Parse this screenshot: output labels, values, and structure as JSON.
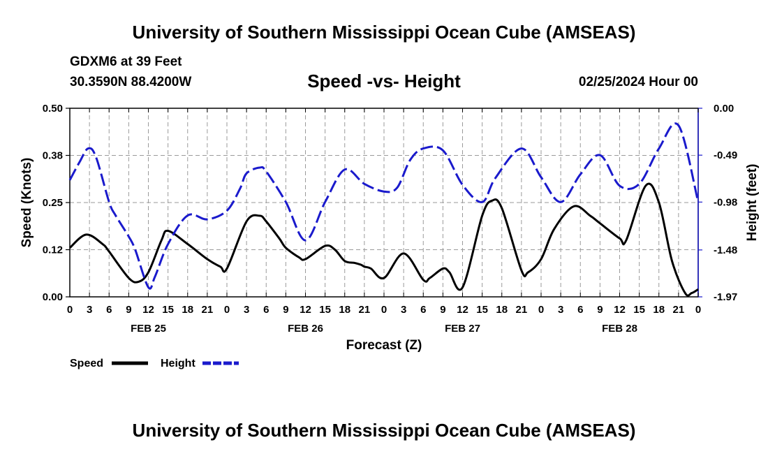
{
  "chart_data": {
    "type": "line",
    "title": "University of Southern Mississippi Ocean Cube (AMSEAS)",
    "footer_title": "University of Southern Mississippi Ocean Cube (AMSEAS)",
    "station": "GDXM6 at 39 Feet",
    "location": "30.3590N  88.4200W",
    "subtitle": "Speed -vs- Height",
    "datetime": "02/25/2024 Hour 00",
    "xlabel": "Forecast (Z)",
    "ylabel_left": "Speed (Knots)",
    "ylabel_right": "Height (feet)",
    "x_range": [
      0,
      96
    ],
    "ylim_left": [
      0,
      0.5
    ],
    "ylim_right": [
      -1.97,
      0.0
    ],
    "left_ticks": [
      "0.50",
      "0.38",
      "0.25",
      "0.12",
      "0.00"
    ],
    "left_tick_values": [
      0.5,
      0.375,
      0.25,
      0.125,
      0.0
    ],
    "right_ticks": [
      "0.00",
      "-0.49",
      "-0.98",
      "-1.48",
      "-1.97"
    ],
    "right_tick_values": [
      0.0,
      -0.49,
      -0.98,
      -1.48,
      -1.97
    ],
    "x_tick_values": [
      0,
      3,
      6,
      9,
      12,
      15,
      18,
      21,
      24,
      27,
      30,
      33,
      36,
      39,
      42,
      45,
      48,
      51,
      54,
      57,
      60,
      63,
      66,
      69,
      72,
      75,
      78,
      81,
      84,
      87,
      90,
      93,
      96
    ],
    "x_tick_labels": [
      "0",
      "3",
      "6",
      "9",
      "12",
      "15",
      "18",
      "21",
      "0",
      "3",
      "6",
      "9",
      "12",
      "15",
      "18",
      "21",
      "0",
      "3",
      "6",
      "9",
      "12",
      "15",
      "18",
      "21",
      "0",
      "3",
      "6",
      "9",
      "12",
      "15",
      "18",
      "21",
      "0"
    ],
    "day_labels": [
      {
        "label": "FEB 25",
        "hour": 12
      },
      {
        "label": "FEB 26",
        "hour": 36
      },
      {
        "label": "FEB 27",
        "hour": 60
      },
      {
        "label": "FEB 28",
        "hour": 84
      }
    ],
    "grid": true,
    "legend_position": "bottom-left",
    "series": [
      {
        "name": "Speed",
        "axis": "left",
        "color": "#000000",
        "style": "solid",
        "x": [
          0,
          2.5,
          5,
          6,
          9,
          10.5,
          12,
          14,
          15,
          18,
          21,
          23,
          24,
          27,
          29,
          30,
          32,
          33,
          35,
          36,
          39,
          40.5,
          42,
          43.5,
          44.5,
          45,
          46,
          48,
          51,
          54,
          55,
          57,
          58,
          60,
          63,
          64.5,
          66,
          69,
          70,
          72,
          74,
          77,
          79.5,
          81,
          84,
          85,
          88,
          90,
          92,
          94,
          95,
          96
        ],
        "y": [
          0.13,
          0.165,
          0.14,
          0.12,
          0.05,
          0.04,
          0.065,
          0.15,
          0.175,
          0.14,
          0.1,
          0.08,
          0.075,
          0.2,
          0.215,
          0.2,
          0.155,
          0.13,
          0.105,
          0.1,
          0.135,
          0.125,
          0.095,
          0.09,
          0.085,
          0.08,
          0.075,
          0.05,
          0.115,
          0.045,
          0.05,
          0.075,
          0.065,
          0.025,
          0.215,
          0.255,
          0.235,
          0.07,
          0.065,
          0.1,
          0.18,
          0.24,
          0.215,
          0.195,
          0.155,
          0.15,
          0.295,
          0.25,
          0.095,
          0.01,
          0.01,
          0.02
        ]
      },
      {
        "name": "Height",
        "axis": "right",
        "color": "#1a1acc",
        "style": "dashed",
        "x": [
          0,
          1.5,
          2.8,
          4,
          6,
          7,
          9,
          10,
          12,
          13,
          15,
          18,
          21,
          24,
          26,
          27,
          29,
          30,
          33,
          36,
          39,
          42,
          45,
          48,
          50,
          52,
          54,
          57,
          60,
          63,
          65,
          69,
          72,
          75,
          78,
          81,
          84,
          87,
          90,
          93,
          96
        ],
        "y": [
          -0.75,
          -0.56,
          -0.42,
          -0.51,
          -0.98,
          -1.12,
          -1.34,
          -1.48,
          -1.87,
          -1.76,
          -1.42,
          -1.12,
          -1.16,
          -1.07,
          -0.84,
          -0.68,
          -0.62,
          -0.66,
          -0.98,
          -1.38,
          -0.98,
          -0.64,
          -0.79,
          -0.87,
          -0.83,
          -0.54,
          -0.42,
          -0.44,
          -0.8,
          -0.98,
          -0.73,
          -0.42,
          -0.72,
          -0.98,
          -0.69,
          -0.49,
          -0.81,
          -0.79,
          -0.42,
          -0.18,
          -0.98
        ]
      }
    ]
  },
  "legend": {
    "speed_label": "Speed",
    "height_label": "Height"
  }
}
